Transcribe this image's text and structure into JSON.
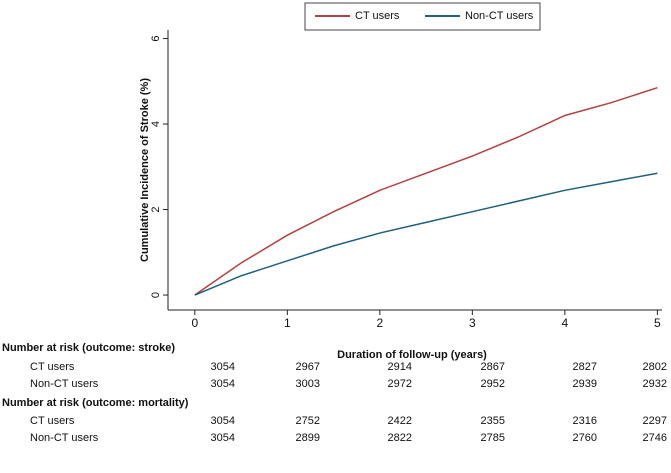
{
  "chart_data": {
    "type": "line",
    "x_label": "Duration of follow-up (years)",
    "y_label": "Cumulative Incidence of Stroke (%)",
    "x": [
      0,
      0.5,
      1,
      1.5,
      2,
      2.5,
      3,
      3.5,
      4,
      4.5,
      5
    ],
    "series": [
      {
        "name": "CT users",
        "color": "#b5403f",
        "values": [
          0,
          0.75,
          1.4,
          1.95,
          2.45,
          2.85,
          3.25,
          3.7,
          4.2,
          4.5,
          4.85
        ]
      },
      {
        "name": "Non-CT users",
        "color": "#1f5f80",
        "values": [
          0,
          0.45,
          0.8,
          1.15,
          1.45,
          1.7,
          1.95,
          2.2,
          2.45,
          2.65,
          2.85
        ]
      }
    ],
    "xlim": [
      -0.29,
      5.05
    ],
    "xticks": [
      0,
      1,
      2,
      3,
      4,
      5
    ],
    "ylim": [
      -0.35,
      6.2
    ],
    "yticks": [
      0,
      2,
      4,
      6
    ],
    "legend": "top"
  },
  "risk_table": {
    "sections": [
      {
        "title": "Number at risk (outcome: stroke)",
        "rows": [
          {
            "label": "CT users",
            "values": [
              3054,
              2967,
              2914,
              2867,
              2827,
              2802
            ]
          },
          {
            "label": "Non-CT users",
            "values": [
              3054,
              3003,
              2972,
              2952,
              2939,
              2932
            ]
          }
        ]
      },
      {
        "title": "Number at risk (outcome: mortality)",
        "rows": [
          {
            "label": "CT users",
            "values": [
              3054,
              2752,
              2422,
              2355,
              2316,
              2297
            ]
          },
          {
            "label": "Non-CT users",
            "values": [
              3054,
              2899,
              2822,
              2785,
              2760,
              2746
            ]
          }
        ]
      }
    ]
  }
}
